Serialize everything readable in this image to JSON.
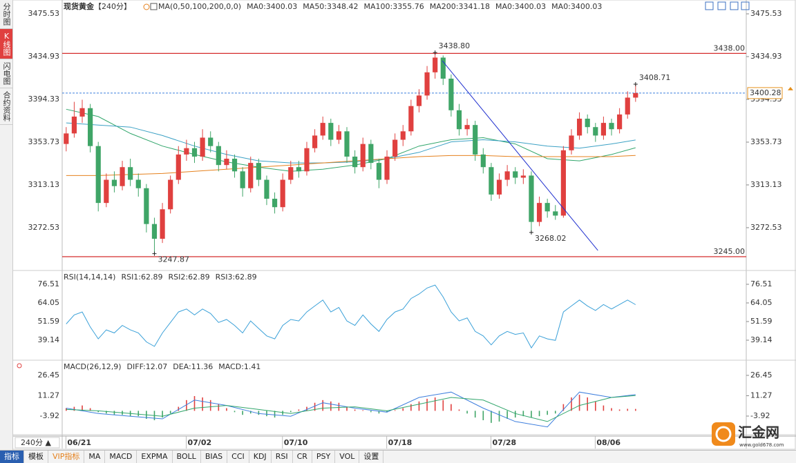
{
  "sidebar": {
    "tabs": [
      "分时图",
      "K线图",
      "闪电图",
      "合约资料"
    ],
    "active": 1
  },
  "chart_data": [
    {
      "type": "candlestick",
      "title": "现货黄金",
      "period": "【240分】",
      "indicator": "MA(0,50,100,200,0,0)",
      "legend": [
        {
          "text": "MA0:3400.03",
          "color": "#3b7ddd"
        },
        {
          "text": "MA50:3348.42",
          "color": "#2fa56a"
        },
        {
          "text": "MA100:3355.76",
          "color": "#3aa0c4"
        },
        {
          "text": "MA200:3341.18",
          "color": "#e5801c"
        },
        {
          "text": "MA0:3400.03",
          "color": "#e07fd2"
        },
        {
          "text": "MA0:3400.03",
          "color": "#6aa8e8"
        }
      ],
      "up_color": "#e0403f",
      "down_color": "#3fa567",
      "xlim": [
        -0.5,
        84.8
      ],
      "ylim": [
        3233.2,
        3480.8
      ],
      "yticks": [
        3475.53,
        3434.93,
        3394.33,
        3353.73,
        3313.13,
        3272.53
      ],
      "xticks": [
        {
          "value": 1,
          "label": "06/21"
        },
        {
          "value": 16,
          "label": "07/02"
        },
        {
          "value": 28,
          "label": "07/10"
        },
        {
          "value": 41,
          "label": "07/18"
        },
        {
          "value": 54,
          "label": "07/28"
        },
        {
          "value": 67,
          "label": "08/06"
        }
      ],
      "ohlc": [
        [
          3352,
          3368,
          3345,
          3362
        ],
        [
          3362,
          3392,
          3358,
          3378
        ],
        [
          3378,
          3394,
          3372,
          3386
        ],
        [
          3386,
          3390,
          3344,
          3350
        ],
        [
          3350,
          3354,
          3288,
          3296
        ],
        [
          3296,
          3324,
          3292,
          3318
        ],
        [
          3318,
          3326,
          3306,
          3312
        ],
        [
          3312,
          3336,
          3308,
          3330
        ],
        [
          3330,
          3338,
          3312,
          3318
        ],
        [
          3318,
          3324,
          3302,
          3310
        ],
        [
          3310,
          3314,
          3268,
          3276
        ],
        [
          3276,
          3282,
          3247.87,
          3262
        ],
        [
          3262,
          3296,
          3258,
          3290
        ],
        [
          3290,
          3322,
          3286,
          3318
        ],
        [
          3318,
          3350,
          3314,
          3342
        ],
        [
          3342,
          3356,
          3336,
          3348
        ],
        [
          3348,
          3354,
          3334,
          3340
        ],
        [
          3340,
          3366,
          3336,
          3358
        ],
        [
          3358,
          3364,
          3344,
          3350
        ],
        [
          3350,
          3354,
          3326,
          3332
        ],
        [
          3332,
          3346,
          3328,
          3338
        ],
        [
          3338,
          3342,
          3320,
          3326
        ],
        [
          3326,
          3330,
          3302,
          3310
        ],
        [
          3310,
          3340,
          3306,
          3334
        ],
        [
          3334,
          3338,
          3312,
          3318
        ],
        [
          3318,
          3322,
          3294,
          3300
        ],
        [
          3300,
          3306,
          3286,
          3292
        ],
        [
          3292,
          3324,
          3288,
          3318
        ],
        [
          3318,
          3336,
          3314,
          3330
        ],
        [
          3330,
          3336,
          3320,
          3326
        ],
        [
          3326,
          3354,
          3322,
          3348
        ],
        [
          3348,
          3366,
          3344,
          3360
        ],
        [
          3360,
          3378,
          3356,
          3372
        ],
        [
          3372,
          3376,
          3350,
          3356
        ],
        [
          3356,
          3370,
          3352,
          3364
        ],
        [
          3364,
          3368,
          3334,
          3340
        ],
        [
          3340,
          3346,
          3324,
          3330
        ],
        [
          3330,
          3358,
          3326,
          3352
        ],
        [
          3352,
          3356,
          3328,
          3334
        ],
        [
          3334,
          3338,
          3310,
          3318
        ],
        [
          3318,
          3346,
          3314,
          3340
        ],
        [
          3340,
          3362,
          3336,
          3356
        ],
        [
          3356,
          3370,
          3350,
          3364
        ],
        [
          3364,
          3394,
          3360,
          3388
        ],
        [
          3388,
          3404,
          3382,
          3398
        ],
        [
          3398,
          3426,
          3394,
          3420
        ],
        [
          3420,
          3438.8,
          3414,
          3434
        ],
        [
          3434,
          3436,
          3408,
          3414
        ],
        [
          3414,
          3418,
          3378,
          3384
        ],
        [
          3384,
          3390,
          3360,
          3366
        ],
        [
          3366,
          3376,
          3360,
          3370
        ],
        [
          3370,
          3374,
          3336,
          3342
        ],
        [
          3342,
          3348,
          3324,
          3330
        ],
        [
          3330,
          3334,
          3298,
          3304
        ],
        [
          3304,
          3324,
          3300,
          3318
        ],
        [
          3318,
          3332,
          3312,
          3326
        ],
        [
          3326,
          3330,
          3314,
          3320
        ],
        [
          3320,
          3328,
          3314,
          3322
        ],
        [
          3322,
          3326,
          3268.02,
          3278
        ],
        [
          3278,
          3302,
          3274,
          3296
        ],
        [
          3296,
          3300,
          3282,
          3288
        ],
        [
          3288,
          3294,
          3280,
          3284
        ],
        [
          3284,
          3350,
          3282,
          3346
        ],
        [
          3346,
          3366,
          3342,
          3360
        ],
        [
          3360,
          3382,
          3356,
          3376
        ],
        [
          3376,
          3380,
          3362,
          3368
        ],
        [
          3368,
          3372,
          3354,
          3360
        ],
        [
          3360,
          3378,
          3356,
          3372
        ],
        [
          3372,
          3376,
          3360,
          3366
        ],
        [
          3366,
          3386,
          3362,
          3380
        ],
        [
          3380,
          3402,
          3376,
          3396
        ],
        [
          3396,
          3408.71,
          3392,
          3400.28
        ]
      ],
      "ma": {
        "x": [
          0,
          4,
          8,
          12,
          16,
          20,
          24,
          28,
          32,
          36,
          40,
          44,
          48,
          52,
          56,
          60,
          64,
          68,
          71
        ],
        "series": [
          {
            "color": "#2fa56a",
            "values": [
              3385,
              3378,
              3362,
              3350,
              3342,
              3335,
              3330,
              3326,
              3328,
              3332,
              3338,
              3350,
              3356,
              3358,
              3352,
              3338,
              3336,
              3342,
              3348.42
            ]
          },
          {
            "color": "#3aa0c4",
            "values": [
              3372,
              3370,
              3368,
              3360,
              3350,
              3342,
              3336,
              3334,
              3334,
              3335,
              3338,
              3344,
              3354,
              3356,
              3354,
              3350,
              3348,
              3352,
              3355.76
            ]
          },
          {
            "color": "#e5801c",
            "values": [
              3322,
              3322,
              3323,
              3324,
              3326,
              3328,
              3330,
              3332,
              3334,
              3336,
              3338,
              3340,
              3341,
              3341,
              3340,
              3340,
              3340,
              3340,
              3341.18
            ]
          }
        ]
      },
      "levels": [
        {
          "value": 3438,
          "label": "3438.00",
          "color": "#d42a2a"
        },
        {
          "value": 3245,
          "label": "3245.00",
          "color": "#d42a2a"
        }
      ],
      "last_price": {
        "value": 3400.28,
        "label": "3400.28",
        "color": "#3b7ddd",
        "label_color": "#e5901c"
      },
      "annotations": [
        {
          "text": "3438.80",
          "x": 46,
          "y": 3438.8,
          "color": "#e0403f"
        },
        {
          "text": "3408.71",
          "x": 71,
          "y": 3408.71,
          "color": "#e0403f"
        },
        {
          "text": "3268.02",
          "x": 58,
          "y": 3268.02,
          "color": "#3fa567"
        },
        {
          "text": "3247.87",
          "x": 11,
          "y": 3247.87,
          "color": "#3fa567"
        }
      ],
      "trendline": {
        "x": [
          46.9,
          66.3
        ],
        "y": [
          3431,
          3250.9
        ],
        "color": "#1f2fcf"
      }
    },
    {
      "type": "line",
      "indicator": "RSI(14,14,14)",
      "legend": [
        {
          "text": "RSI1:62.89",
          "color": "#3b7ddd"
        },
        {
          "text": "RSI2:62.89",
          "color": "#2fa56a"
        },
        {
          "text": "RSI3:62.89",
          "color": "#3b7ddd"
        }
      ],
      "ylim": [
        26.68,
        84.35
      ],
      "yticks": [
        76.51,
        64.05,
        51.59,
        39.14
      ],
      "series": [
        {
          "color": "#3aa0d8",
          "values": [
            50,
            56,
            58,
            48,
            40,
            46,
            44,
            49,
            46,
            44,
            38,
            35,
            44,
            51,
            58,
            60,
            56,
            60,
            57,
            51,
            53,
            49,
            44,
            52,
            47,
            42,
            40,
            49,
            53,
            52,
            58,
            62,
            66,
            58,
            61,
            52,
            49,
            56,
            50,
            45,
            53,
            58,
            60,
            67,
            70,
            74,
            76,
            68,
            58,
            52,
            54,
            45,
            42,
            36,
            42,
            45,
            43,
            44,
            34,
            42,
            40,
            39,
            58,
            62,
            66,
            62,
            59,
            63,
            60,
            63,
            66,
            62.89
          ]
        }
      ]
    },
    {
      "type": "macd",
      "indicator": "MACD(26,12,9)",
      "legend": [
        {
          "text": "DIFF:12.07",
          "color": "#3b7ddd"
        },
        {
          "text": "DEA:11.36",
          "color": "#2fa56a"
        },
        {
          "text": "MACD:1.41",
          "color": "#3b7ddd"
        }
      ],
      "ylim": [
        -16.79,
        36.23
      ],
      "yticks": [
        26.45,
        11.27,
        -3.92
      ],
      "up_color": "#e0403f",
      "down_color": "#3fa567",
      "histogram": [
        2,
        3,
        4,
        2,
        -1,
        -2,
        -3,
        -3,
        -4,
        -4,
        -6,
        -7,
        -5,
        -2,
        3,
        8,
        11,
        10,
        8,
        5,
        2,
        -1,
        -3,
        -2,
        -3,
        -4,
        -5,
        -3,
        -1,
        1,
        3,
        6,
        8,
        7,
        6,
        3,
        1,
        0.5,
        -1,
        -2,
        -1,
        0.5,
        2,
        5,
        7,
        9,
        10,
        8,
        5,
        1,
        -2,
        -5,
        -7,
        -9,
        -8,
        -6,
        -5,
        -4,
        -5,
        -4,
        -3,
        -2,
        5,
        10,
        12,
        10,
        7,
        4,
        2,
        1,
        1.5,
        1.41
      ],
      "x": [
        0,
        4,
        8,
        12,
        16,
        20,
        24,
        28,
        32,
        36,
        40,
        44,
        48,
        52,
        56,
        60,
        64,
        68,
        71
      ],
      "series": [
        {
          "color": "#3b7ddd",
          "values": [
            2,
            -2,
            -4,
            -6,
            8,
            4,
            -2,
            -4,
            6,
            2,
            -1,
            10,
            14,
            2,
            -8,
            -12,
            14,
            10,
            12.07
          ]
        },
        {
          "color": "#2fa56a",
          "values": [
            1,
            0,
            -2,
            -4,
            2,
            4,
            1,
            -2,
            2,
            3,
            0,
            5,
            10,
            8,
            -2,
            -8,
            4,
            10,
            11.36
          ]
        }
      ]
    }
  ],
  "x_axis": {
    "period_button": "240分 ▲"
  },
  "toolbar": {
    "items": [
      "指标",
      "模板",
      "VIP指标",
      "MA",
      "MACD",
      "EXPMA",
      "BOLL",
      "BIAS",
      "CCI",
      "KDJ",
      "RSI",
      "CR",
      "PSY",
      "VOL",
      "设置"
    ],
    "active": 0,
    "highlight": 2
  },
  "logo": {
    "text": "汇金网",
    "url": "www.gold678.com"
  }
}
